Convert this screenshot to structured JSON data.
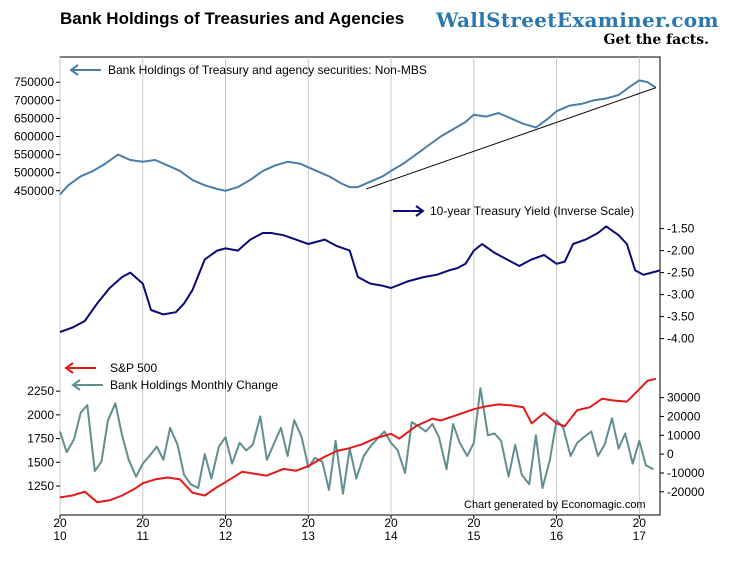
{
  "header": {
    "title": "Bank Holdings of Treasuries and Agencies",
    "brand": "WallStreetExaminer.com",
    "tagline": "Get the facts."
  },
  "footer": {
    "credit": "Chart generated by Economagic.com"
  },
  "colors": {
    "holdings": "#4a7ea8",
    "yield": "#0a0a7a",
    "sp500": "#e31a1a",
    "monthly_change": "#5f8f8f",
    "trendline": "#000000",
    "border": "#000000"
  },
  "chart_data": {
    "type": "line",
    "xlabel": "",
    "x_ticks": [
      {
        "top": "20",
        "bottom": "10",
        "year": 2010
      },
      {
        "top": "20",
        "bottom": "11",
        "year": 2011
      },
      {
        "top": "20",
        "bottom": "12",
        "year": 2012
      },
      {
        "top": "20",
        "bottom": "13",
        "year": 2013
      },
      {
        "top": "20",
        "bottom": "14",
        "year": 2014
      },
      {
        "top": "20",
        "bottom": "15",
        "year": 2015
      },
      {
        "top": "20",
        "bottom": "16",
        "year": 2016
      },
      {
        "top": "20",
        "bottom": "17",
        "year": 2017
      }
    ],
    "xlim": [
      2010.0,
      2017.25
    ],
    "panels": [
      {
        "id": "holdings",
        "axis_side": "left",
        "ylim": [
          430000,
          770000
        ],
        "yticks": [
          "750000",
          "700000",
          "650000",
          "600000",
          "550000",
          "500000",
          "450000"
        ],
        "ytick_values": [
          750000,
          700000,
          650000,
          600000,
          550000,
          500000,
          450000
        ],
        "series": [
          {
            "name": "Bank Holdings of Treasury and agency securities: Non-MBS",
            "color_key": "holdings",
            "x": [
              2010.0,
              2010.1,
              2010.25,
              2010.4,
              2010.55,
              2010.7,
              2010.85,
              2011.0,
              2011.15,
              2011.3,
              2011.45,
              2011.6,
              2011.75,
              2011.9,
              2012.0,
              2012.15,
              2012.3,
              2012.45,
              2012.6,
              2012.75,
              2012.9,
              2013.0,
              2013.1,
              2013.25,
              2013.4,
              2013.5,
              2013.6,
              2013.75,
              2013.9,
              2014.0,
              2014.15,
              2014.3,
              2014.45,
              2014.6,
              2014.75,
              2014.9,
              2015.0,
              2015.15,
              2015.3,
              2015.45,
              2015.6,
              2015.75,
              2015.9,
              2016.0,
              2016.15,
              2016.3,
              2016.45,
              2016.6,
              2016.75,
              2016.9,
              2017.0,
              2017.1,
              2017.2
            ],
            "y": [
              440000,
              465000,
              490000,
              505000,
              525000,
              550000,
              535000,
              530000,
              535000,
              520000,
              505000,
              480000,
              465000,
              455000,
              450000,
              460000,
              480000,
              505000,
              520000,
              530000,
              525000,
              515000,
              505000,
              490000,
              470000,
              460000,
              460000,
              475000,
              490000,
              505000,
              525000,
              550000,
              575000,
              600000,
              620000,
              640000,
              660000,
              655000,
              665000,
              650000,
              635000,
              625000,
              650000,
              670000,
              685000,
              690000,
              700000,
              705000,
              715000,
              740000,
              755000,
              750000,
              735000
            ]
          }
        ],
        "trendline": {
          "x": [
            2013.7,
            2017.2
          ],
          "y": [
            455000,
            735000
          ]
        }
      },
      {
        "id": "yield",
        "axis_side": "right",
        "inverse": true,
        "ylim": [
          -4.1,
          -1.35
        ],
        "yticks": [
          "-1.50",
          "-2.00",
          "-2.50",
          "-3.00",
          "-3.50",
          "-4.00"
        ],
        "ytick_values": [
          -1.5,
          -2.0,
          -2.5,
          -3.0,
          -3.5,
          -4.0
        ],
        "series": [
          {
            "name": "10-year Treasury Yield (Inverse Scale)",
            "color_key": "yield",
            "x": [
              2010.0,
              2010.15,
              2010.3,
              2010.45,
              2010.6,
              2010.75,
              2010.85,
              2011.0,
              2011.1,
              2011.25,
              2011.4,
              2011.5,
              2011.6,
              2011.75,
              2011.9,
              2012.0,
              2012.15,
              2012.3,
              2012.45,
              2012.55,
              2012.7,
              2012.85,
              2013.0,
              2013.2,
              2013.35,
              2013.5,
              2013.6,
              2013.75,
              2013.9,
              2014.0,
              2014.2,
              2014.4,
              2014.55,
              2014.7,
              2014.8,
              2014.9,
              2015.0,
              2015.1,
              2015.25,
              2015.4,
              2015.55,
              2015.7,
              2015.85,
              2016.0,
              2016.1,
              2016.2,
              2016.35,
              2016.5,
              2016.6,
              2016.75,
              2016.85,
              2016.95,
              2017.05,
              2017.15,
              2017.25
            ],
            "y": [
              -3.85,
              -3.75,
              -3.6,
              -3.2,
              -2.85,
              -2.6,
              -2.5,
              -2.75,
              -3.35,
              -3.45,
              -3.4,
              -3.2,
              -2.9,
              -2.2,
              -2.0,
              -1.95,
              -2.0,
              -1.75,
              -1.6,
              -1.6,
              -1.65,
              -1.75,
              -1.85,
              -1.75,
              -1.9,
              -2.0,
              -2.6,
              -2.75,
              -2.8,
              -2.85,
              -2.7,
              -2.6,
              -2.55,
              -2.45,
              -2.4,
              -2.3,
              -2.0,
              -1.85,
              -2.05,
              -2.2,
              -2.35,
              -2.2,
              -2.1,
              -2.3,
              -2.25,
              -1.85,
              -1.75,
              -1.6,
              -1.45,
              -1.65,
              -1.85,
              -2.45,
              -2.55,
              -2.5,
              -2.45
            ]
          }
        ]
      },
      {
        "id": "sp_change",
        "axis_side": "both",
        "left_ylim": [
          1050,
          2420
        ],
        "left_yticks": [
          "2250",
          "2000",
          "1750",
          "1500",
          "1250"
        ],
        "left_ytick_values": [
          2250,
          2000,
          1750,
          1500,
          1250
        ],
        "right_ylim": [
          -27000,
          42000
        ],
        "right_yticks": [
          "30000",
          "20000",
          "10000",
          "0",
          "-10000",
          "-20000"
        ],
        "right_ytick_values": [
          30000,
          20000,
          10000,
          0,
          -10000,
          -20000
        ],
        "series": [
          {
            "name": "S&P 500",
            "color_key": "sp500",
            "axis": "left",
            "x": [
              2010.0,
              2010.15,
              2010.3,
              2010.45,
              2010.6,
              2010.75,
              2010.9,
              2011.0,
              2011.15,
              2011.3,
              2011.45,
              2011.6,
              2011.75,
              2011.9,
              2012.0,
              2012.2,
              2012.35,
              2012.5,
              2012.7,
              2012.85,
              2013.0,
              2013.2,
              2013.35,
              2013.5,
              2013.65,
              2013.8,
              2014.0,
              2014.1,
              2014.3,
              2014.5,
              2014.6,
              2014.8,
              2015.0,
              2015.15,
              2015.3,
              2015.45,
              2015.6,
              2015.7,
              2015.85,
              2016.0,
              2016.1,
              2016.25,
              2016.4,
              2016.55,
              2016.7,
              2016.85,
              2017.0,
              2017.1,
              2017.2
            ],
            "y": [
              1130,
              1150,
              1190,
              1080,
              1100,
              1150,
              1220,
              1280,
              1320,
              1340,
              1320,
              1180,
              1150,
              1240,
              1290,
              1400,
              1380,
              1360,
              1430,
              1410,
              1460,
              1560,
              1620,
              1650,
              1690,
              1750,
              1800,
              1750,
              1880,
              1960,
              1940,
              2000,
              2060,
              2090,
              2110,
              2100,
              2080,
              1910,
              2020,
              1910,
              1880,
              2050,
              2080,
              2170,
              2150,
              2140,
              2270,
              2360,
              2380
            ]
          },
          {
            "name": "Bank Holdings Monthly Change",
            "color_key": "monthly_change",
            "axis": "right",
            "x": [
              2010.0,
              2010.08,
              2010.17,
              2010.25,
              2010.33,
              2010.42,
              2010.5,
              2010.58,
              2010.67,
              2010.75,
              2010.83,
              2010.92,
              2011.0,
              2011.08,
              2011.17,
              2011.25,
              2011.33,
              2011.42,
              2011.5,
              2011.58,
              2011.67,
              2011.75,
              2011.83,
              2011.92,
              2012.0,
              2012.08,
              2012.17,
              2012.25,
              2012.33,
              2012.42,
              2012.5,
              2012.58,
              2012.67,
              2012.75,
              2012.83,
              2012.92,
              2013.0,
              2013.08,
              2013.17,
              2013.25,
              2013.33,
              2013.42,
              2013.5,
              2013.58,
              2013.67,
              2013.75,
              2013.83,
              2013.92,
              2014.0,
              2014.08,
              2014.17,
              2014.25,
              2014.33,
              2014.42,
              2014.5,
              2014.58,
              2014.67,
              2014.75,
              2014.83,
              2014.92,
              2015.0,
              2015.08,
              2015.17,
              2015.25,
              2015.33,
              2015.42,
              2015.5,
              2015.58,
              2015.67,
              2015.75,
              2015.83,
              2015.92,
              2016.0,
              2016.08,
              2016.17,
              2016.25,
              2016.33,
              2016.42,
              2016.5,
              2016.58,
              2016.67,
              2016.75,
              2016.83,
              2016.92,
              2017.0,
              2017.08,
              2017.17
            ],
            "y": [
              12000,
              1000,
              8000,
              22000,
              26000,
              -9000,
              -4000,
              18000,
              27000,
              10000,
              -3000,
              -12000,
              -5000,
              -1000,
              4000,
              -3000,
              14000,
              5000,
              -11000,
              -16000,
              -18000,
              0,
              -13000,
              4000,
              9000,
              -5000,
              6000,
              2000,
              5000,
              20000,
              -3000,
              5000,
              14000,
              -1000,
              18000,
              9000,
              -7000,
              -2000,
              -4000,
              -19000,
              7000,
              -21000,
              3000,
              -13000,
              -1000,
              4000,
              8000,
              12000,
              6000,
              2000,
              -10000,
              17000,
              15000,
              12000,
              16000,
              9000,
              -8000,
              16000,
              6000,
              -1000,
              6000,
              35000,
              10000,
              11000,
              7000,
              -12000,
              5000,
              -11000,
              -16000,
              10000,
              -18000,
              -3000,
              18000,
              14000,
              -1000,
              6000,
              9000,
              12000,
              -1000,
              5000,
              19000,
              3000,
              11000,
              -5000,
              7000,
              -6000,
              -8000
            ]
          }
        ]
      }
    ]
  }
}
